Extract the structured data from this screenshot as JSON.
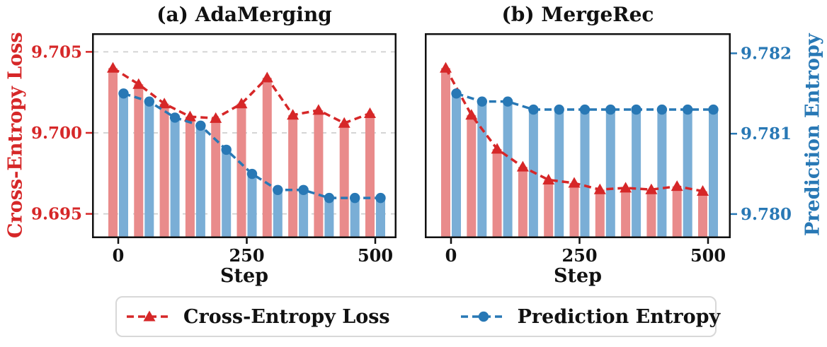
{
  "figure": {
    "background": "#ffffff",
    "legend": {
      "items": [
        {
          "label": "Cross-Entropy Loss",
          "marker": "triangle",
          "color": "#d62728"
        },
        {
          "label": "Prediction Entropy",
          "marker": "circle",
          "color": "#2878b5"
        }
      ]
    }
  },
  "chart_data": [
    {
      "type": "bar",
      "subtype": "grouped-bars-with-dashed-lines-and-markers",
      "title": "(a) AdaMerging",
      "xlabel": "Step",
      "x": [
        0,
        50,
        100,
        150,
        200,
        250,
        300,
        350,
        400,
        450,
        500
      ],
      "xticks": [
        0,
        250,
        500
      ],
      "xtick_labels": [
        "0",
        "250",
        "500"
      ],
      "grid": true,
      "grid_color": "#cfcfcf",
      "left_axis": {
        "label": "Cross-Entropy Loss",
        "color": "#d62728",
        "bar_color": "#e98b8b",
        "tick_labels": [
          "9.705",
          "9.700",
          "9.695"
        ],
        "tick_values": [
          9.705,
          9.7,
          9.695
        ],
        "ylim": [
          9.6935,
          9.70615
        ],
        "show_tick_labels": true
      },
      "right_axis": {
        "label": "Prediction Entropy",
        "color": "#2878b5",
        "bar_color": "#7aaed6",
        "tick_labels": [
          "9.782",
          "9.781",
          "9.780"
        ],
        "tick_values": [
          9.782,
          9.781,
          9.78
        ],
        "ylim": [
          9.7797,
          9.78225
        ],
        "show_tick_labels": false
      },
      "series": [
        {
          "name": "Cross-Entropy Loss",
          "axis": "left",
          "marker": "triangle",
          "values": [
            9.704,
            9.703,
            9.7018,
            9.701,
            9.7009,
            9.7018,
            9.7034,
            9.7011,
            9.7014,
            9.7006,
            9.7012
          ]
        },
        {
          "name": "Prediction Entropy",
          "axis": "right",
          "marker": "circle",
          "values": [
            9.7815,
            9.7814,
            9.7812,
            9.7811,
            9.7808,
            9.7805,
            9.7803,
            9.7803,
            9.7802,
            9.7802,
            9.7802
          ]
        }
      ]
    },
    {
      "type": "bar",
      "subtype": "grouped-bars-with-dashed-lines-and-markers",
      "title": "(b) MergeRec",
      "xlabel": "Step",
      "x": [
        0,
        50,
        100,
        150,
        200,
        250,
        300,
        350,
        400,
        450,
        500
      ],
      "xticks": [
        0,
        250,
        500
      ],
      "xtick_labels": [
        "0",
        "250",
        "500"
      ],
      "grid": false,
      "grid_color": "#cfcfcf",
      "left_axis": {
        "label": "Cross-Entropy Loss",
        "color": "#d62728",
        "bar_color": "#e98b8b",
        "tick_labels": [
          "9.705",
          "9.700",
          "9.695"
        ],
        "tick_values": [
          9.705,
          9.7,
          9.695
        ],
        "ylim": [
          9.6935,
          9.70615
        ],
        "show_tick_labels": false
      },
      "right_axis": {
        "label": "Prediction Entropy",
        "color": "#2878b5",
        "bar_color": "#7aaed6",
        "tick_labels": [
          "9.782",
          "9.781",
          "9.780"
        ],
        "tick_values": [
          9.782,
          9.781,
          9.78
        ],
        "ylim": [
          9.7797,
          9.78225
        ],
        "show_tick_labels": true
      },
      "series": [
        {
          "name": "Cross-Entropy Loss",
          "axis": "left",
          "marker": "triangle",
          "values": [
            9.704,
            9.7011,
            9.699,
            9.6979,
            9.6971,
            9.6969,
            9.6965,
            9.6966,
            9.6965,
            9.6967,
            9.6964
          ]
        },
        {
          "name": "Prediction Entropy",
          "axis": "right",
          "marker": "circle",
          "values": [
            9.7815,
            9.7814,
            9.7814,
            9.7813,
            9.7813,
            9.7813,
            9.7813,
            9.7813,
            9.7813,
            9.7813,
            9.7813
          ]
        }
      ]
    }
  ]
}
